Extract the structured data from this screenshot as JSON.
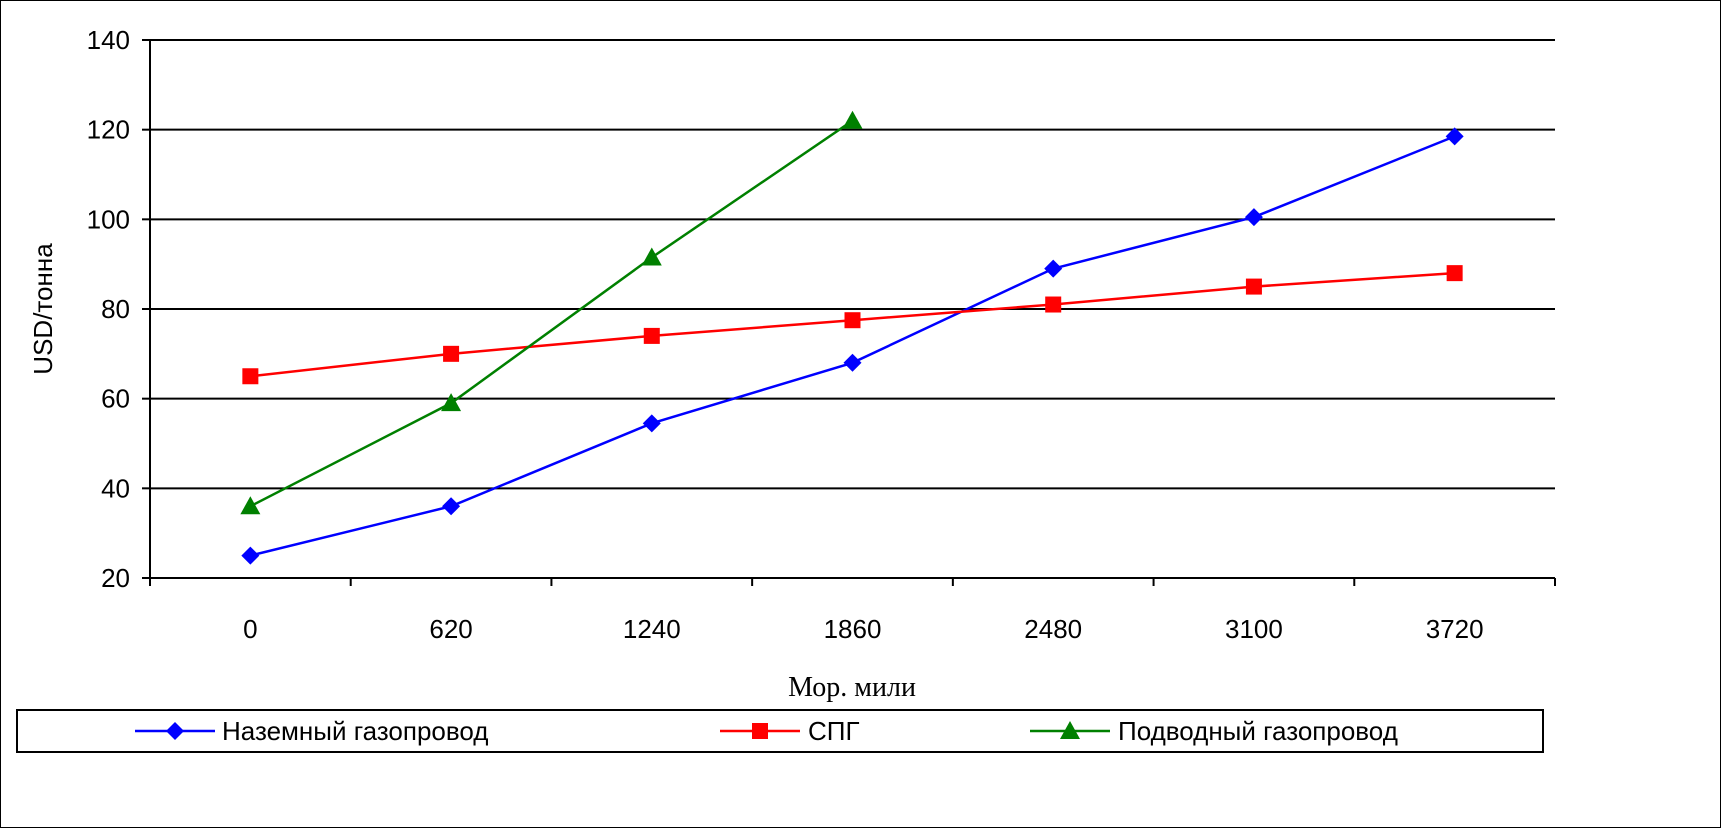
{
  "chart_data": {
    "type": "line",
    "title": "",
    "xlabel": "Мор. мили",
    "ylabel": "USD/тонна",
    "categories": [
      "0",
      "620",
      "1240",
      "1860",
      "2480",
      "3100",
      "3720"
    ],
    "ylim": [
      20,
      140
    ],
    "yticks": [
      20,
      40,
      60,
      80,
      100,
      120,
      140
    ],
    "grid": true,
    "legend_position": "bottom",
    "series": [
      {
        "name": "Наземный газопровод",
        "color": "#0000ff",
        "marker": "diamond",
        "values": [
          25,
          36,
          54.5,
          68,
          89,
          100.5,
          118.5
        ]
      },
      {
        "name": "СПГ",
        "color": "#ff0000",
        "marker": "square",
        "values": [
          65,
          70,
          74,
          77.5,
          81,
          85,
          88
        ]
      },
      {
        "name": "Подводный газопровод",
        "color": "#008000",
        "marker": "triangle",
        "values": [
          36,
          59,
          91.5,
          122,
          null,
          null,
          null
        ]
      }
    ]
  }
}
